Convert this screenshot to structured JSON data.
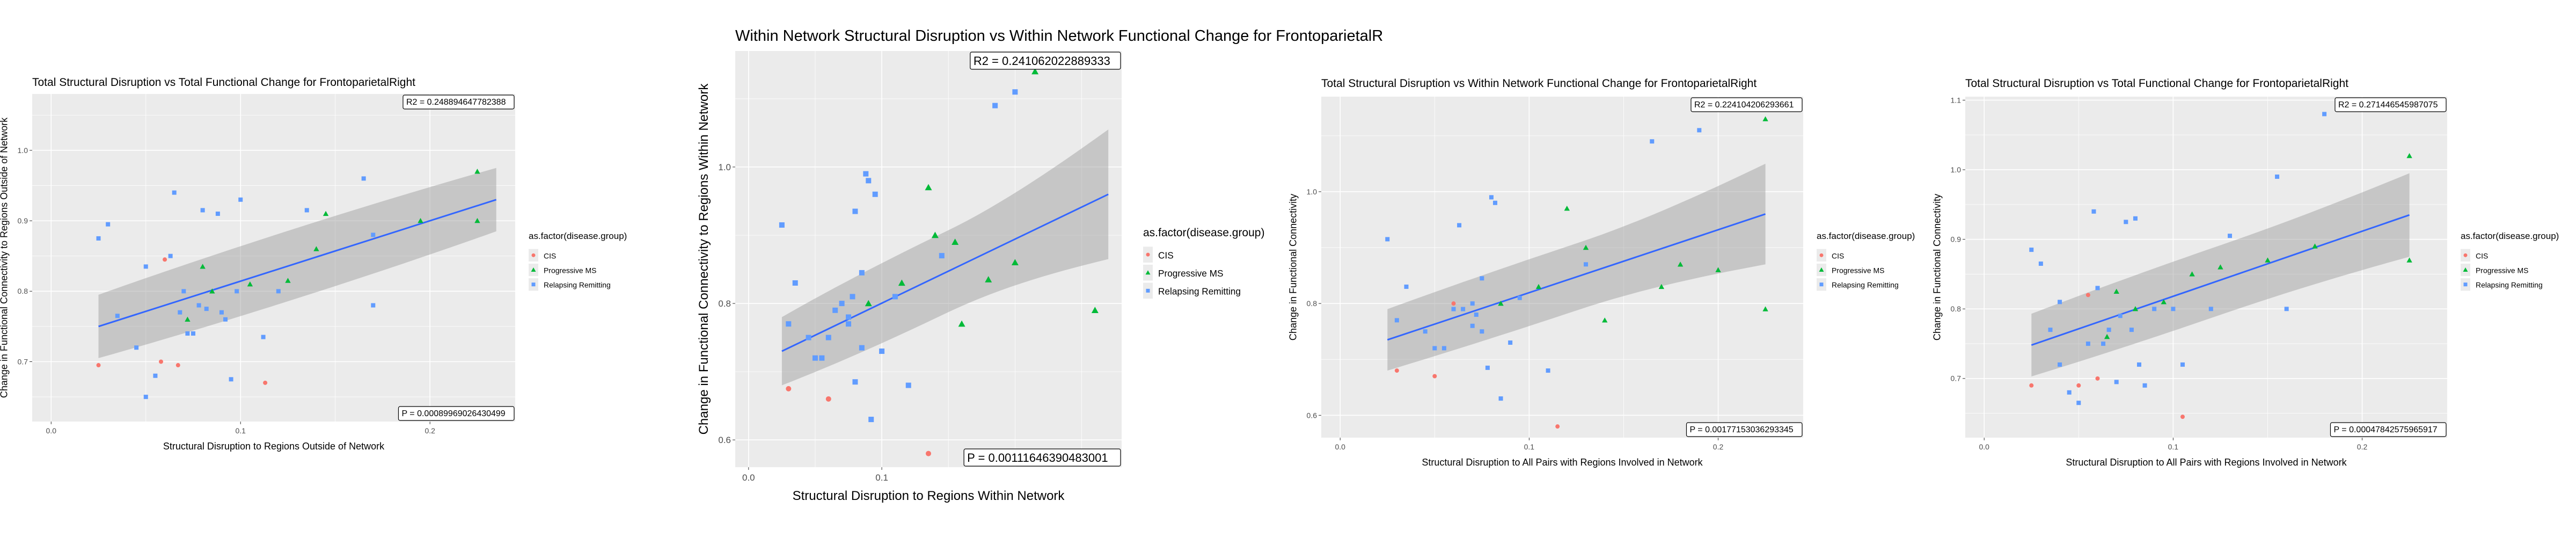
{
  "chart_data": [
    {
      "type": "scatter",
      "title": "Total Structural Disruption vs Total Functional Change for FrontoparietalRight",
      "xlabel": "Structural Disruption to Regions Outside of Network",
      "ylabel": "Change in Functional Connectivity to Regions Outside of Network",
      "xlim": [
        -0.01,
        0.245
      ],
      "ylim": [
        0.615,
        1.08
      ],
      "xticks": [
        0.0,
        0.1,
        0.2
      ],
      "xtick_labels": [
        "0.0",
        "0.1",
        "0.2"
      ],
      "yticks": [
        0.7,
        0.8,
        0.9,
        1.0
      ],
      "ytick_labels": [
        "0.7",
        "0.8",
        "0.9",
        "1.0"
      ],
      "r2_text": "R2 =  0.248894647782388",
      "p_text": "P =  0.00089969026430499",
      "fit": {
        "x": [
          0.025,
          0.235
        ],
        "y": [
          0.75,
          0.93
        ],
        "ci_lower_mid": 0.745,
        "ci_upper_mid": 0.845,
        "ci_end_halfwidth": [
          0.045,
          0.045
        ]
      },
      "legend": {
        "title": "as.factor(disease.group)",
        "entries": [
          "CIS",
          "Progressive MS",
          "Relapsing Remitting"
        ]
      },
      "series": [
        {
          "name": "CIS",
          "color": "#F8766D",
          "shape": "circle",
          "points": [
            [
              0.025,
              0.695
            ],
            [
              0.058,
              0.7
            ],
            [
              0.06,
              0.845
            ],
            [
              0.067,
              0.695
            ],
            [
              0.113,
              0.67
            ]
          ]
        },
        {
          "name": "Progressive MS",
          "color": "#00BA38",
          "shape": "triangle",
          "points": [
            [
              0.072,
              0.76
            ],
            [
              0.085,
              0.8
            ],
            [
              0.105,
              0.81
            ],
            [
              0.125,
              0.815
            ],
            [
              0.14,
              0.86
            ],
            [
              0.145,
              0.91
            ],
            [
              0.195,
              0.9
            ],
            [
              0.225,
              0.97
            ],
            [
              0.225,
              0.9
            ],
            [
              0.08,
              0.835
            ]
          ]
        },
        {
          "name": "Relapsing Remitting",
          "color": "#619CFF",
          "shape": "square",
          "points": [
            [
              0.025,
              0.875
            ],
            [
              0.03,
              0.895
            ],
            [
              0.035,
              0.765
            ],
            [
              0.05,
              0.835
            ],
            [
              0.055,
              0.68
            ],
            [
              0.063,
              0.85
            ],
            [
              0.065,
              0.94
            ],
            [
              0.068,
              0.77
            ],
            [
              0.07,
              0.8
            ],
            [
              0.072,
              0.74
            ],
            [
              0.075,
              0.74
            ],
            [
              0.078,
              0.78
            ],
            [
              0.08,
              0.915
            ],
            [
              0.082,
              0.775
            ],
            [
              0.088,
              0.91
            ],
            [
              0.09,
              0.77
            ],
            [
              0.092,
              0.76
            ],
            [
              0.095,
              0.675
            ],
            [
              0.098,
              0.8
            ],
            [
              0.1,
              0.93
            ],
            [
              0.112,
              0.735
            ],
            [
              0.12,
              0.8
            ],
            [
              0.135,
              0.915
            ],
            [
              0.165,
              0.96
            ],
            [
              0.17,
              0.88
            ],
            [
              0.17,
              0.78
            ],
            [
              0.19,
              1.065
            ],
            [
              0.05,
              0.65
            ],
            [
              0.045,
              0.72
            ]
          ]
        }
      ]
    },
    {
      "type": "scatter",
      "title": "Within Network Structural Disruption vs Within Network Functional Change for FrontoparietalR",
      "xlabel": "Structural Disruption to Regions Within Network",
      "ylabel": "Change in Functional Connectivity to Regions Within Network",
      "xlim": [
        -0.01,
        0.28
      ],
      "ylim": [
        0.56,
        1.17
      ],
      "xticks": [
        0.0,
        0.1
      ],
      "xtick_labels": [
        "0.0",
        "0.1"
      ],
      "yticks": [
        0.6,
        0.8,
        1.0
      ],
      "ytick_labels": [
        "0.6",
        "0.8",
        "1.0"
      ],
      "r2_text": "R2 =  0.241062022889333",
      "p_text": "P =  0.00111646390483001",
      "fit": {
        "x": [
          0.025,
          0.27
        ],
        "y": [
          0.73,
          0.96
        ],
        "ci_lower_mid": 0.735,
        "ci_upper_mid": 0.855,
        "ci_end_halfwidth": [
          0.05,
          0.095
        ]
      },
      "legend": {
        "title": "as.factor(disease.group)",
        "entries": [
          "CIS",
          "Progressive MS",
          "Relapsing Remitting"
        ]
      },
      "series": [
        {
          "name": "CIS",
          "color": "#F8766D",
          "shape": "circle",
          "points": [
            [
              0.03,
              0.675
            ],
            [
              0.06,
              0.66
            ],
            [
              0.07,
              0.8
            ],
            [
              0.135,
              0.58
            ]
          ]
        },
        {
          "name": "Progressive MS",
          "color": "#00BA38",
          "shape": "triangle",
          "points": [
            [
              0.09,
              0.8
            ],
            [
              0.115,
              0.83
            ],
            [
              0.135,
              0.97
            ],
            [
              0.14,
              0.9
            ],
            [
              0.155,
              0.89
            ],
            [
              0.16,
              0.77
            ],
            [
              0.18,
              0.835
            ],
            [
              0.2,
              0.86
            ],
            [
              0.215,
              1.14
            ],
            [
              0.26,
              0.79
            ]
          ]
        },
        {
          "name": "Relapsing Remitting",
          "color": "#619CFF",
          "shape": "square",
          "points": [
            [
              0.025,
              0.915
            ],
            [
              0.03,
              0.77
            ],
            [
              0.035,
              0.83
            ],
            [
              0.045,
              0.75
            ],
            [
              0.05,
              0.72
            ],
            [
              0.055,
              0.72
            ],
            [
              0.06,
              0.75
            ],
            [
              0.065,
              0.79
            ],
            [
              0.07,
              0.8
            ],
            [
              0.075,
              0.78
            ],
            [
              0.078,
              0.81
            ],
            [
              0.08,
              0.685
            ],
            [
              0.085,
              0.845
            ],
            [
              0.088,
              0.99
            ],
            [
              0.09,
              0.98
            ],
            [
              0.092,
              0.63
            ],
            [
              0.095,
              0.96
            ],
            [
              0.1,
              0.73
            ],
            [
              0.11,
              0.81
            ],
            [
              0.12,
              0.68
            ],
            [
              0.145,
              0.87
            ],
            [
              0.185,
              1.09
            ],
            [
              0.2,
              1.11
            ],
            [
              0.085,
              0.735
            ],
            [
              0.08,
              0.935
            ],
            [
              0.075,
              0.77
            ]
          ]
        }
      ]
    },
    {
      "type": "scatter",
      "title": "Total Structural Disruption vs Within Network Functional Change for FrontoparietalRight",
      "xlabel": "Structural Disruption to All Pairs with Regions Involved in Network",
      "ylabel": "Change in Functional Connectivity",
      "xlim": [
        -0.01,
        0.245
      ],
      "ylim": [
        0.56,
        1.17
      ],
      "xticks": [
        0.0,
        0.1,
        0.2
      ],
      "xtick_labels": [
        "0.0",
        "0.1",
        "0.2"
      ],
      "yticks": [
        0.6,
        0.8,
        1.0
      ],
      "ytick_labels": [
        "0.6",
        "0.8",
        "1.0"
      ],
      "r2_text": "R2 =  0.224104206293661",
      "p_text": "P =  0.00177153036293345",
      "fit": {
        "x": [
          0.025,
          0.225
        ],
        "y": [
          0.735,
          0.96
        ],
        "ci_lower_mid": 0.745,
        "ci_upper_mid": 0.865,
        "ci_end_halfwidth": [
          0.055,
          0.09
        ]
      },
      "legend": {
        "title": "as.factor(disease.group)",
        "entries": [
          "CIS",
          "Progressive MS",
          "Relapsing Remitting"
        ]
      },
      "series": [
        {
          "name": "CIS",
          "color": "#F8766D",
          "shape": "circle",
          "points": [
            [
              0.03,
              0.68
            ],
            [
              0.05,
              0.67
            ],
            [
              0.06,
              0.8
            ],
            [
              0.115,
              0.58
            ]
          ]
        },
        {
          "name": "Progressive MS",
          "color": "#00BA38",
          "shape": "triangle",
          "points": [
            [
              0.085,
              0.8
            ],
            [
              0.105,
              0.83
            ],
            [
              0.12,
              0.97
            ],
            [
              0.13,
              0.9
            ],
            [
              0.14,
              0.77
            ],
            [
              0.17,
              0.83
            ],
            [
              0.18,
              0.87
            ],
            [
              0.2,
              0.86
            ],
            [
              0.225,
              1.13
            ],
            [
              0.225,
              0.79
            ]
          ]
        },
        {
          "name": "Relapsing Remitting",
          "color": "#619CFF",
          "shape": "square",
          "points": [
            [
              0.025,
              0.915
            ],
            [
              0.03,
              0.77
            ],
            [
              0.035,
              0.83
            ],
            [
              0.045,
              0.75
            ],
            [
              0.05,
              0.72
            ],
            [
              0.055,
              0.72
            ],
            [
              0.06,
              0.79
            ],
            [
              0.063,
              0.94
            ],
            [
              0.065,
              0.79
            ],
            [
              0.07,
              0.8
            ],
            [
              0.072,
              0.78
            ],
            [
              0.075,
              0.845
            ],
            [
              0.078,
              0.685
            ],
            [
              0.08,
              0.99
            ],
            [
              0.082,
              0.98
            ],
            [
              0.085,
              0.63
            ],
            [
              0.09,
              0.73
            ],
            [
              0.095,
              0.81
            ],
            [
              0.11,
              0.68
            ],
            [
              0.13,
              0.87
            ],
            [
              0.165,
              1.09
            ],
            [
              0.19,
              1.11
            ],
            [
              0.075,
              0.75
            ],
            [
              0.07,
              0.76
            ]
          ]
        }
      ]
    },
    {
      "type": "scatter",
      "title": "Total Structural Disruption vs Total Functional Change for FrontoparietalRight",
      "xlabel": "Structural Disruption to All Pairs with Regions Involved in Network",
      "ylabel": "Change in Functional Connectivity",
      "xlim": [
        -0.01,
        0.245
      ],
      "ylim": [
        0.615,
        1.105
      ],
      "xticks": [
        0.0,
        0.1,
        0.2
      ],
      "xtick_labels": [
        "0.0",
        "0.1",
        "0.2"
      ],
      "yticks": [
        0.7,
        0.8,
        0.9,
        1.0,
        1.1
      ],
      "ytick_labels": [
        "0.7",
        "0.8",
        "0.9",
        "1.0",
        "1.1"
      ],
      "r2_text": "R2 =  0.271446545987075",
      "p_text": "P =  0.00047842575965917",
      "fit": {
        "x": [
          0.025,
          0.225
        ],
        "y": [
          0.748,
          0.935
        ],
        "ci_lower_mid": 0.748,
        "ci_upper_mid": 0.848,
        "ci_end_halfwidth": [
          0.045,
          0.06
        ]
      },
      "legend": {
        "title": "as.factor(disease.group)",
        "entries": [
          "CIS",
          "Progressive MS",
          "Relapsing Remitting"
        ]
      },
      "series": [
        {
          "name": "CIS",
          "color": "#F8766D",
          "shape": "circle",
          "points": [
            [
              0.025,
              0.69
            ],
            [
              0.05,
              0.69
            ],
            [
              0.055,
              0.82
            ],
            [
              0.06,
              0.7
            ],
            [
              0.105,
              0.645
            ]
          ]
        },
        {
          "name": "Progressive MS",
          "color": "#00BA38",
          "shape": "triangle",
          "points": [
            [
              0.065,
              0.76
            ],
            [
              0.08,
              0.8
            ],
            [
              0.095,
              0.81
            ],
            [
              0.11,
              0.85
            ],
            [
              0.125,
              0.86
            ],
            [
              0.15,
              0.87
            ],
            [
              0.175,
              0.89
            ],
            [
              0.225,
              1.02
            ],
            [
              0.225,
              0.87
            ],
            [
              0.07,
              0.825
            ]
          ]
        },
        {
          "name": "Relapsing Remitting",
          "color": "#619CFF",
          "shape": "square",
          "points": [
            [
              0.025,
              0.885
            ],
            [
              0.03,
              0.865
            ],
            [
              0.035,
              0.77
            ],
            [
              0.04,
              0.81
            ],
            [
              0.05,
              0.665
            ],
            [
              0.055,
              0.75
            ],
            [
              0.058,
              0.94
            ],
            [
              0.06,
              0.83
            ],
            [
              0.063,
              0.75
            ],
            [
              0.066,
              0.77
            ],
            [
              0.07,
              0.695
            ],
            [
              0.072,
              0.79
            ],
            [
              0.075,
              0.925
            ],
            [
              0.078,
              0.77
            ],
            [
              0.08,
              0.93
            ],
            [
              0.082,
              0.72
            ],
            [
              0.085,
              0.69
            ],
            [
              0.09,
              0.8
            ],
            [
              0.1,
              0.8
            ],
            [
              0.105,
              0.72
            ],
            [
              0.12,
              0.8
            ],
            [
              0.13,
              0.905
            ],
            [
              0.155,
              0.99
            ],
            [
              0.16,
              0.8
            ],
            [
              0.18,
              1.08
            ],
            [
              0.045,
              0.68
            ],
            [
              0.04,
              0.72
            ]
          ]
        }
      ]
    }
  ],
  "colors": {
    "panel_bg": "#EBEBEB",
    "grid": "#FFFFFF",
    "fit_line": "#3366FF",
    "ci_band": "#999999"
  }
}
